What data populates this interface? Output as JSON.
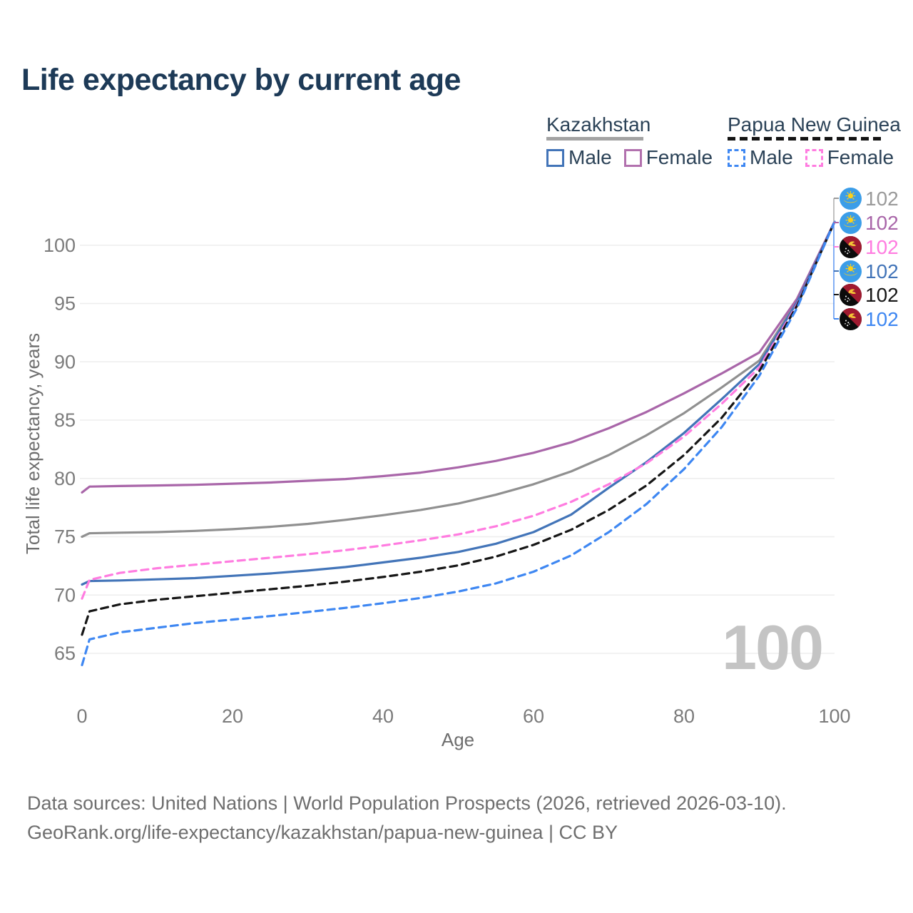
{
  "title": "Life expectancy by current age",
  "legend": {
    "groups": [
      {
        "country": "Kazakhstan",
        "line_style": "solid",
        "underline_color": "#a3a3a3",
        "items": [
          {
            "label": "Male",
            "color": "#4274b8",
            "dashed": false
          },
          {
            "label": "Female",
            "color": "#b271ae",
            "dashed": false
          }
        ]
      },
      {
        "country": "Papua New Guinea",
        "line_style": "dashed",
        "underline_color": "#141414",
        "items": [
          {
            "label": "Male",
            "color": "#3e87f2",
            "dashed": true
          },
          {
            "label": "Female",
            "color": "#ff7ce0",
            "dashed": true
          }
        ]
      }
    ]
  },
  "chart_data": {
    "type": "line",
    "title": "Life expectancy by current age",
    "xlabel": "Age",
    "ylabel": "Total life expectancy, years",
    "xticks": [
      0,
      20,
      40,
      60,
      80,
      100
    ],
    "yticks": [
      65,
      70,
      75,
      80,
      85,
      90,
      95,
      100
    ],
    "xlim": [
      0,
      100
    ],
    "ylim": [
      63.5,
      102.5
    ],
    "grid": "horizontal",
    "legend_position": "top-right",
    "x": [
      0,
      1,
      5,
      10,
      15,
      20,
      25,
      30,
      35,
      40,
      45,
      50,
      55,
      60,
      65,
      70,
      75,
      80,
      85,
      90,
      95,
      100
    ],
    "series": [
      {
        "id": "kazakhstan-both",
        "name": "Kazakhstan (both sexes)",
        "country": "Kazakhstan",
        "color": "#909090",
        "dashed": false,
        "values": [
          75.0,
          75.3,
          75.35,
          75.4,
          75.5,
          75.65,
          75.85,
          76.1,
          76.45,
          76.85,
          77.3,
          77.85,
          78.6,
          79.5,
          80.6,
          82.0,
          83.7,
          85.6,
          87.8,
          90.1,
          95.2,
          102
        ]
      },
      {
        "id": "kazakhstan-female",
        "name": "Kazakhstan Female",
        "country": "Kazakhstan",
        "color": "#a966a9",
        "dashed": false,
        "values": [
          78.8,
          79.3,
          79.35,
          79.4,
          79.45,
          79.55,
          79.65,
          79.8,
          79.95,
          80.2,
          80.5,
          80.95,
          81.5,
          82.2,
          83.1,
          84.3,
          85.7,
          87.3,
          89.0,
          90.8,
          95.4,
          102
        ]
      },
      {
        "id": "kazakhstan-male",
        "name": "Kazakhstan Male",
        "country": "Kazakhstan",
        "color": "#4274b8",
        "dashed": false,
        "values": [
          70.9,
          71.2,
          71.25,
          71.35,
          71.45,
          71.65,
          71.85,
          72.1,
          72.4,
          72.8,
          73.2,
          73.7,
          74.4,
          75.4,
          76.9,
          79.2,
          81.4,
          83.9,
          86.8,
          89.8,
          95.1,
          102
        ]
      },
      {
        "id": "papua-new-guinea-female",
        "name": "Papua New Guinea Female",
        "country": "Papua New Guinea",
        "color": "#ff7ce0",
        "dashed": true,
        "values": [
          69.7,
          71.3,
          71.9,
          72.3,
          72.6,
          72.9,
          73.2,
          73.5,
          73.85,
          74.25,
          74.7,
          75.2,
          75.9,
          76.8,
          78.0,
          79.5,
          81.3,
          83.6,
          86.4,
          89.5,
          94.9,
          102
        ]
      },
      {
        "id": "papua-new-guinea-both",
        "name": "Papua New Guinea (both sexes)",
        "country": "Papua New Guinea",
        "color": "#161616",
        "dashed": true,
        "values": [
          66.6,
          68.6,
          69.2,
          69.6,
          69.9,
          70.2,
          70.5,
          70.8,
          71.15,
          71.55,
          72.0,
          72.55,
          73.3,
          74.3,
          75.6,
          77.3,
          79.4,
          82.0,
          85.2,
          89.2,
          94.8,
          102
        ]
      },
      {
        "id": "papua-new-guinea-male",
        "name": "Papua New Guinea Male",
        "country": "Papua New Guinea",
        "color": "#3e87f2",
        "dashed": true,
        "values": [
          64.0,
          66.2,
          66.8,
          67.2,
          67.6,
          67.9,
          68.2,
          68.55,
          68.9,
          69.3,
          69.75,
          70.3,
          71.0,
          72.0,
          73.4,
          75.4,
          77.8,
          80.8,
          84.4,
          88.8,
          94.6,
          102
        ]
      }
    ],
    "end_labels": [
      {
        "flag": "kz",
        "country": "Kazakhstan",
        "value": "102",
        "color": "#9a9a9a"
      },
      {
        "flag": "kz",
        "country": "Kazakhstan",
        "value": "102",
        "color": "#a966a9"
      },
      {
        "flag": "pg",
        "country": "Papua New Guinea",
        "value": "102",
        "color": "#ff7ce0"
      },
      {
        "flag": "kz",
        "country": "Kazakhstan",
        "value": "102",
        "color": "#4274b8"
      },
      {
        "flag": "pg",
        "country": "Papua New Guinea",
        "value": "102",
        "color": "#161616"
      },
      {
        "flag": "pg",
        "country": "Papua New Guinea",
        "value": "102",
        "color": "#3e87f2"
      }
    ]
  },
  "watermark": "100",
  "footer": {
    "line1": "Data sources: United Nations | World Population Prospects (2026, retrieved 2026-03-10).",
    "line2_link": "GeoRank.org/life-expectancy/kazakhstan/papua-new-guinea",
    "line2_rest": " | CC BY"
  }
}
